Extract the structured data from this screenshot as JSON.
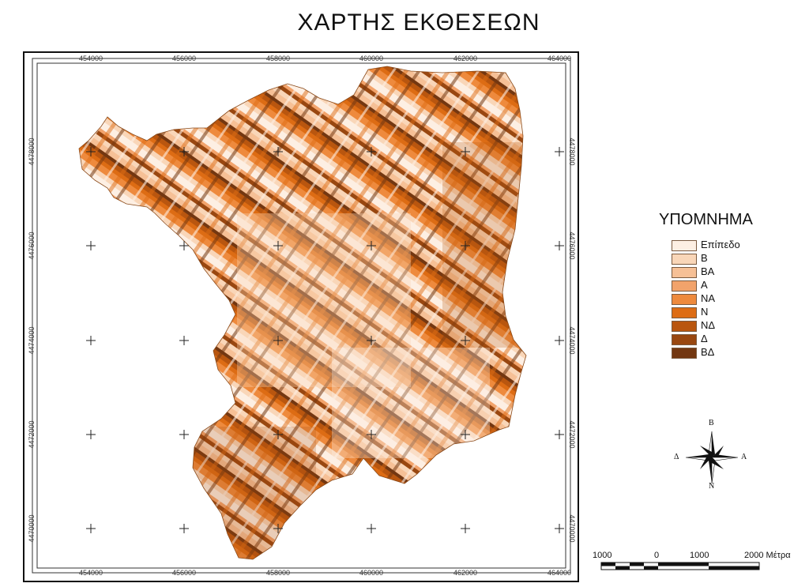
{
  "title": "ΧΑΡΤΗΣ ΕΚΘΕΣΕΩΝ",
  "axes": {
    "x_ticks": [
      "454000",
      "456000",
      "458000",
      "460000",
      "462000",
      "464000"
    ],
    "y_ticks": [
      "4478000",
      "4476000",
      "4474000",
      "4472000",
      "4470000"
    ]
  },
  "legend": {
    "title": "ΥΠΟΜΝΗΜΑ",
    "items": [
      {
        "label": "Επίπεδο",
        "color": "#fdefe3"
      },
      {
        "label": "Β",
        "color": "#f9d6b8"
      },
      {
        "label": "ΒΑ",
        "color": "#f6c096"
      },
      {
        "label": "Α",
        "color": "#f2a36b"
      },
      {
        "label": "ΝΑ",
        "color": "#ee8a3d"
      },
      {
        "label": "Ν",
        "color": "#dd6c14"
      },
      {
        "label": "ΝΔ",
        "color": "#b9560f"
      },
      {
        "label": "Δ",
        "color": "#994710"
      },
      {
        "label": "ΒΔ",
        "color": "#733711"
      }
    ]
  },
  "compass": {
    "north": "Β",
    "south": "Ν",
    "east": "Α",
    "west": "Δ"
  },
  "scale_bar": {
    "labels": [
      "1000",
      "0",
      "1000",
      "2000 Μέτρα"
    ]
  }
}
